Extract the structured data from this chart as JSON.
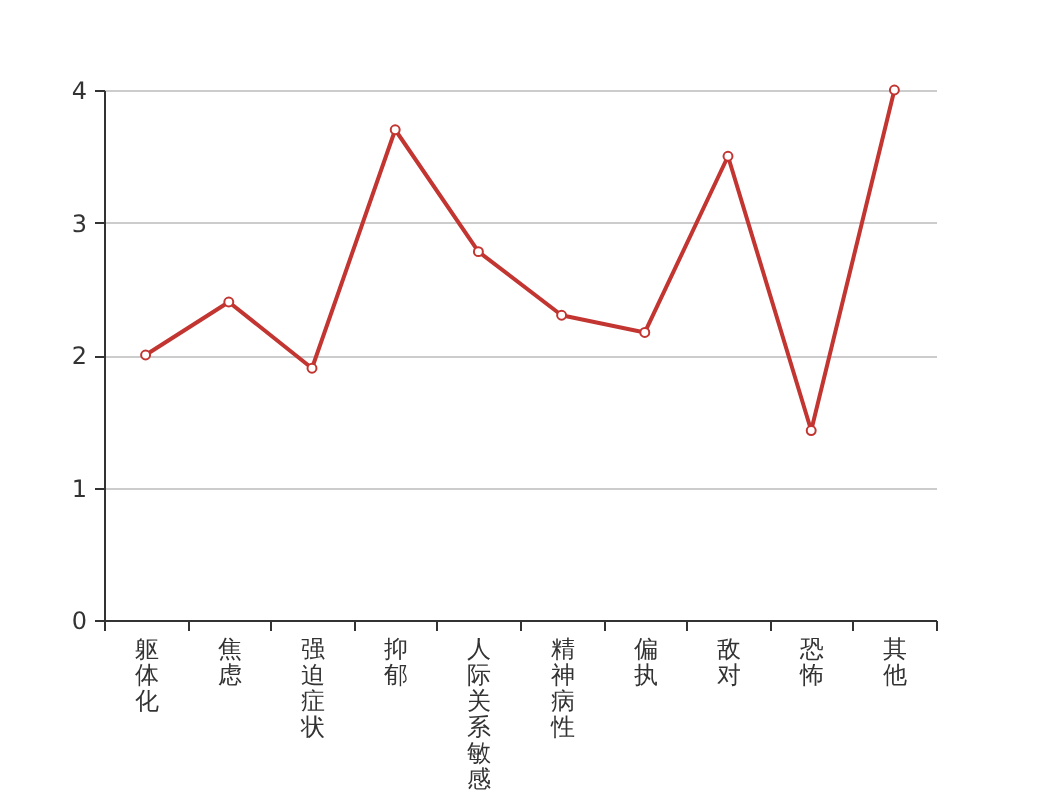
{
  "chart_data": {
    "type": "line",
    "categories": [
      "躯体化",
      "焦虑",
      "强迫症状",
      "抑郁",
      "人际关系敏感",
      "精神病性",
      "偏执",
      "敌对",
      "恐怖",
      "其他"
    ],
    "values": [
      2.0,
      2.4,
      1.9,
      3.7,
      2.78,
      2.3,
      2.17,
      3.5,
      1.43,
      4.0
    ],
    "color": "#c23531",
    "ylim": [
      0,
      4
    ],
    "yticks": [
      0,
      1,
      2,
      3,
      4
    ],
    "grid": "y",
    "marker": "circle"
  }
}
